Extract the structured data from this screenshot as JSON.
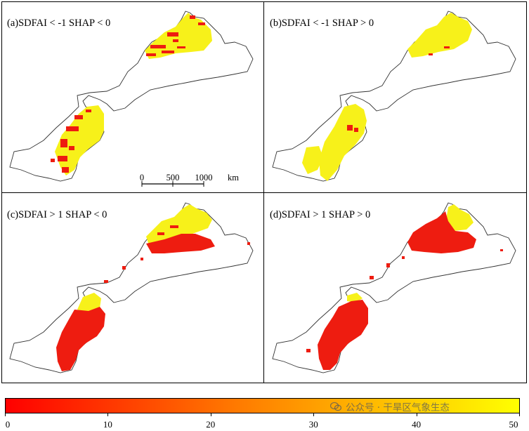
{
  "panels": [
    {
      "id": "a",
      "label": "(a)SDFAI < -1 SHAP < 0"
    },
    {
      "id": "b",
      "label": "(b)SDFAI < -1 SHAP > 0"
    },
    {
      "id": "c",
      "label": "(c)SDFAI > 1 SHAP < 0"
    },
    {
      "id": "d",
      "label": "(d)SDFAI > 1 SHAP > 0"
    }
  ],
  "scale_bar": {
    "ticks": [
      "0",
      "500",
      "1000"
    ],
    "unit": "km"
  },
  "colorbar": {
    "min": 0,
    "max": 50,
    "ticks": [
      "0",
      "10",
      "20",
      "30",
      "40",
      "50"
    ],
    "colors": {
      "low": "#ff0000",
      "mid": "#ff7a00",
      "high": "#ffff00"
    }
  },
  "watermark": {
    "text": "公众号 · 干旱区气象生态",
    "icon": "wechat-icon"
  },
  "colors": {
    "border": "#333333",
    "land": "#ffffff",
    "red": "#ee1c10",
    "yellow": "#f7f11a"
  }
}
